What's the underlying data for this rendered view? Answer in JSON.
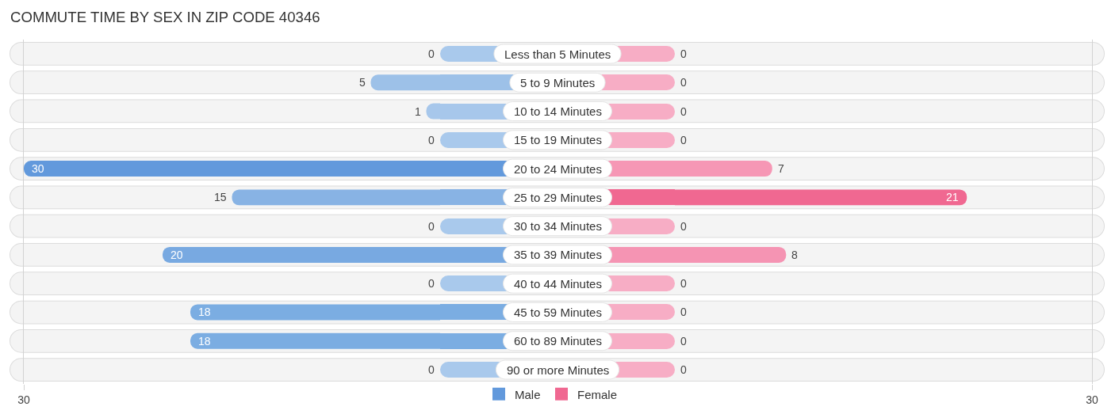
{
  "chart_data": [
    {
      "type": "bar",
      "title": "COMMUTE TIME BY SEX IN ZIP CODE 40346",
      "orientation": "horizontal",
      "categories": [
        "Less than 5 Minutes",
        "5 to 9 Minutes",
        "10 to 14 Minutes",
        "15 to 19 Minutes",
        "20 to 24 Minutes",
        "25 to 29 Minutes",
        "30 to 34 Minutes",
        "35 to 39 Minutes",
        "40 to 44 Minutes",
        "45 to 59 Minutes",
        "60 to 89 Minutes",
        "90 or more Minutes"
      ],
      "series": [
        {
          "name": "Male",
          "color": "#6299dc",
          "colors": [
            "#a9c9ec",
            "#9dc1e8",
            "#a7c7eb",
            "#a9c9ec",
            "#6299dc",
            "#88b3e4",
            "#a9c9ec",
            "#78a9e1",
            "#a9c9ec",
            "#7badE2",
            "#7badE2",
            "#a9c9ec"
          ],
          "values": [
            0,
            5,
            1,
            0,
            30,
            15,
            0,
            20,
            0,
            18,
            18,
            0
          ]
        }
      ],
      "xlim": [
        30,
        0
      ],
      "xticks": [
        30
      ],
      "data_labels": true,
      "legend": "bottom"
    },
    {
      "type": "bar",
      "orientation": "horizontal",
      "categories": [
        null,
        null,
        null,
        null,
        null,
        null,
        null,
        null,
        null,
        null,
        null,
        null
      ],
      "series": [
        {
          "name": "Female",
          "color": "#f06891",
          "colors": [
            "#f7adc5",
            "#f7adc5",
            "#f7adc5",
            "#f7adc5",
            "#f697b5",
            "#f06891",
            "#f7adc5",
            "#f594b3",
            "#f7adc5",
            "#f7adc5",
            "#f7adc5",
            "#f7adc5"
          ],
          "values": [
            0,
            0,
            0,
            0,
            7,
            21,
            0,
            8,
            0,
            0,
            0,
            0
          ]
        }
      ],
      "xlim": [
        0,
        30
      ],
      "xticks": [
        30
      ],
      "data_labels": true,
      "legend": "bottom",
      "tick_labels": "x"
    }
  ]
}
